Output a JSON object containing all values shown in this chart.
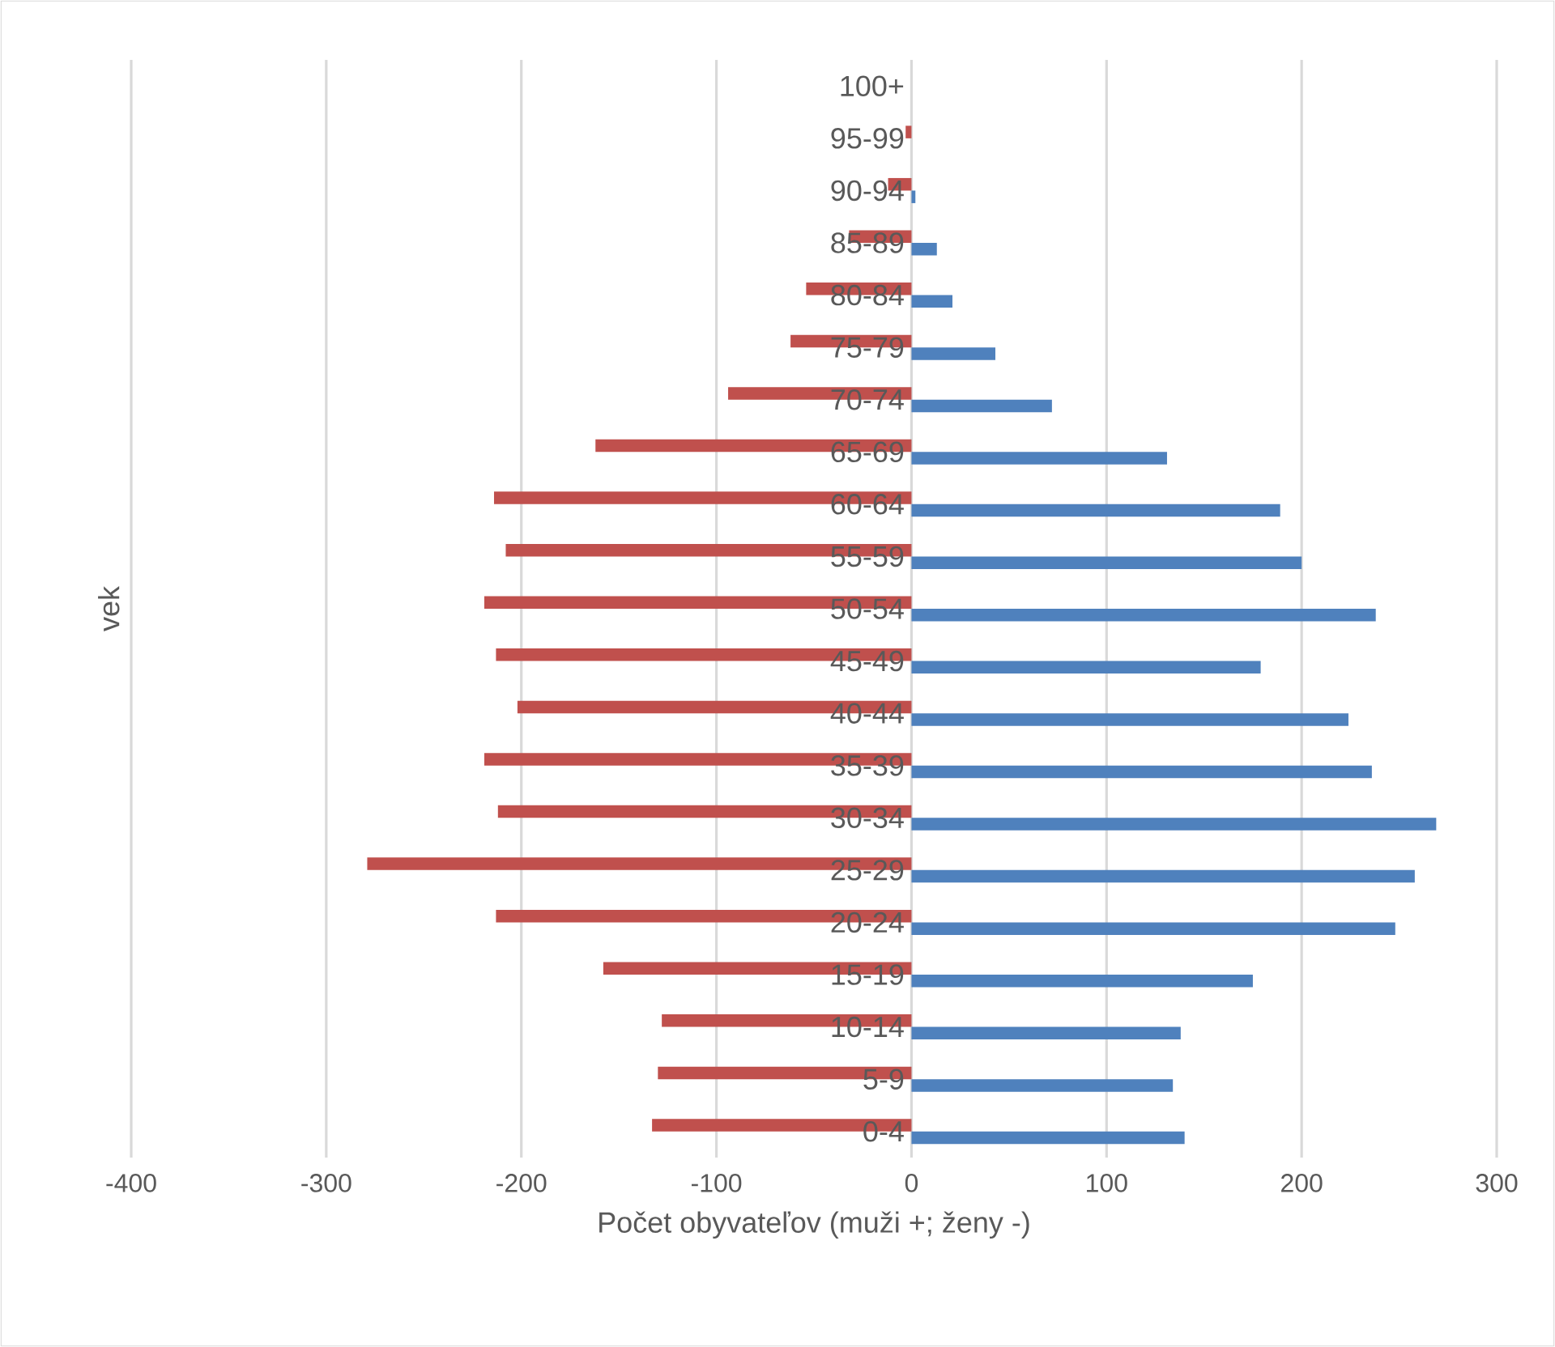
{
  "chart_data": {
    "type": "bar",
    "orientation": "horizontal",
    "xlabel": "Počet obyvateľov (muži +; ženy -)",
    "ylabel": "vek",
    "categories": [
      "100+",
      "95-99",
      "90-94",
      "85-89",
      "80-84",
      "75-79",
      "70-74",
      "65-69",
      "60-64",
      "55-59",
      "50-54",
      "45-49",
      "40-44",
      "35-39",
      "30-34",
      "25-29",
      "20-24",
      "15-19",
      "10-14",
      "5-9",
      "0-4"
    ],
    "series": [
      {
        "color": "#c0504d",
        "values": [
          0,
          -3,
          -12,
          -32,
          -54,
          -62,
          -94,
          -162,
          -214,
          -208,
          -219,
          -213,
          -202,
          -219,
          -212,
          -279,
          -213,
          -158,
          -128,
          -130,
          -133
        ]
      },
      {
        "color": "#4f81bd",
        "values": [
          0,
          0,
          2,
          13,
          21,
          43,
          72,
          131,
          189,
          200,
          238,
          179,
          224,
          236,
          269,
          258,
          248,
          175,
          138,
          134,
          140
        ]
      }
    ],
    "xlim": [
      -400,
      300
    ],
    "xticks": [
      -400,
      -300,
      -200,
      -100,
      0,
      100,
      200,
      300
    ],
    "grid": "x"
  }
}
